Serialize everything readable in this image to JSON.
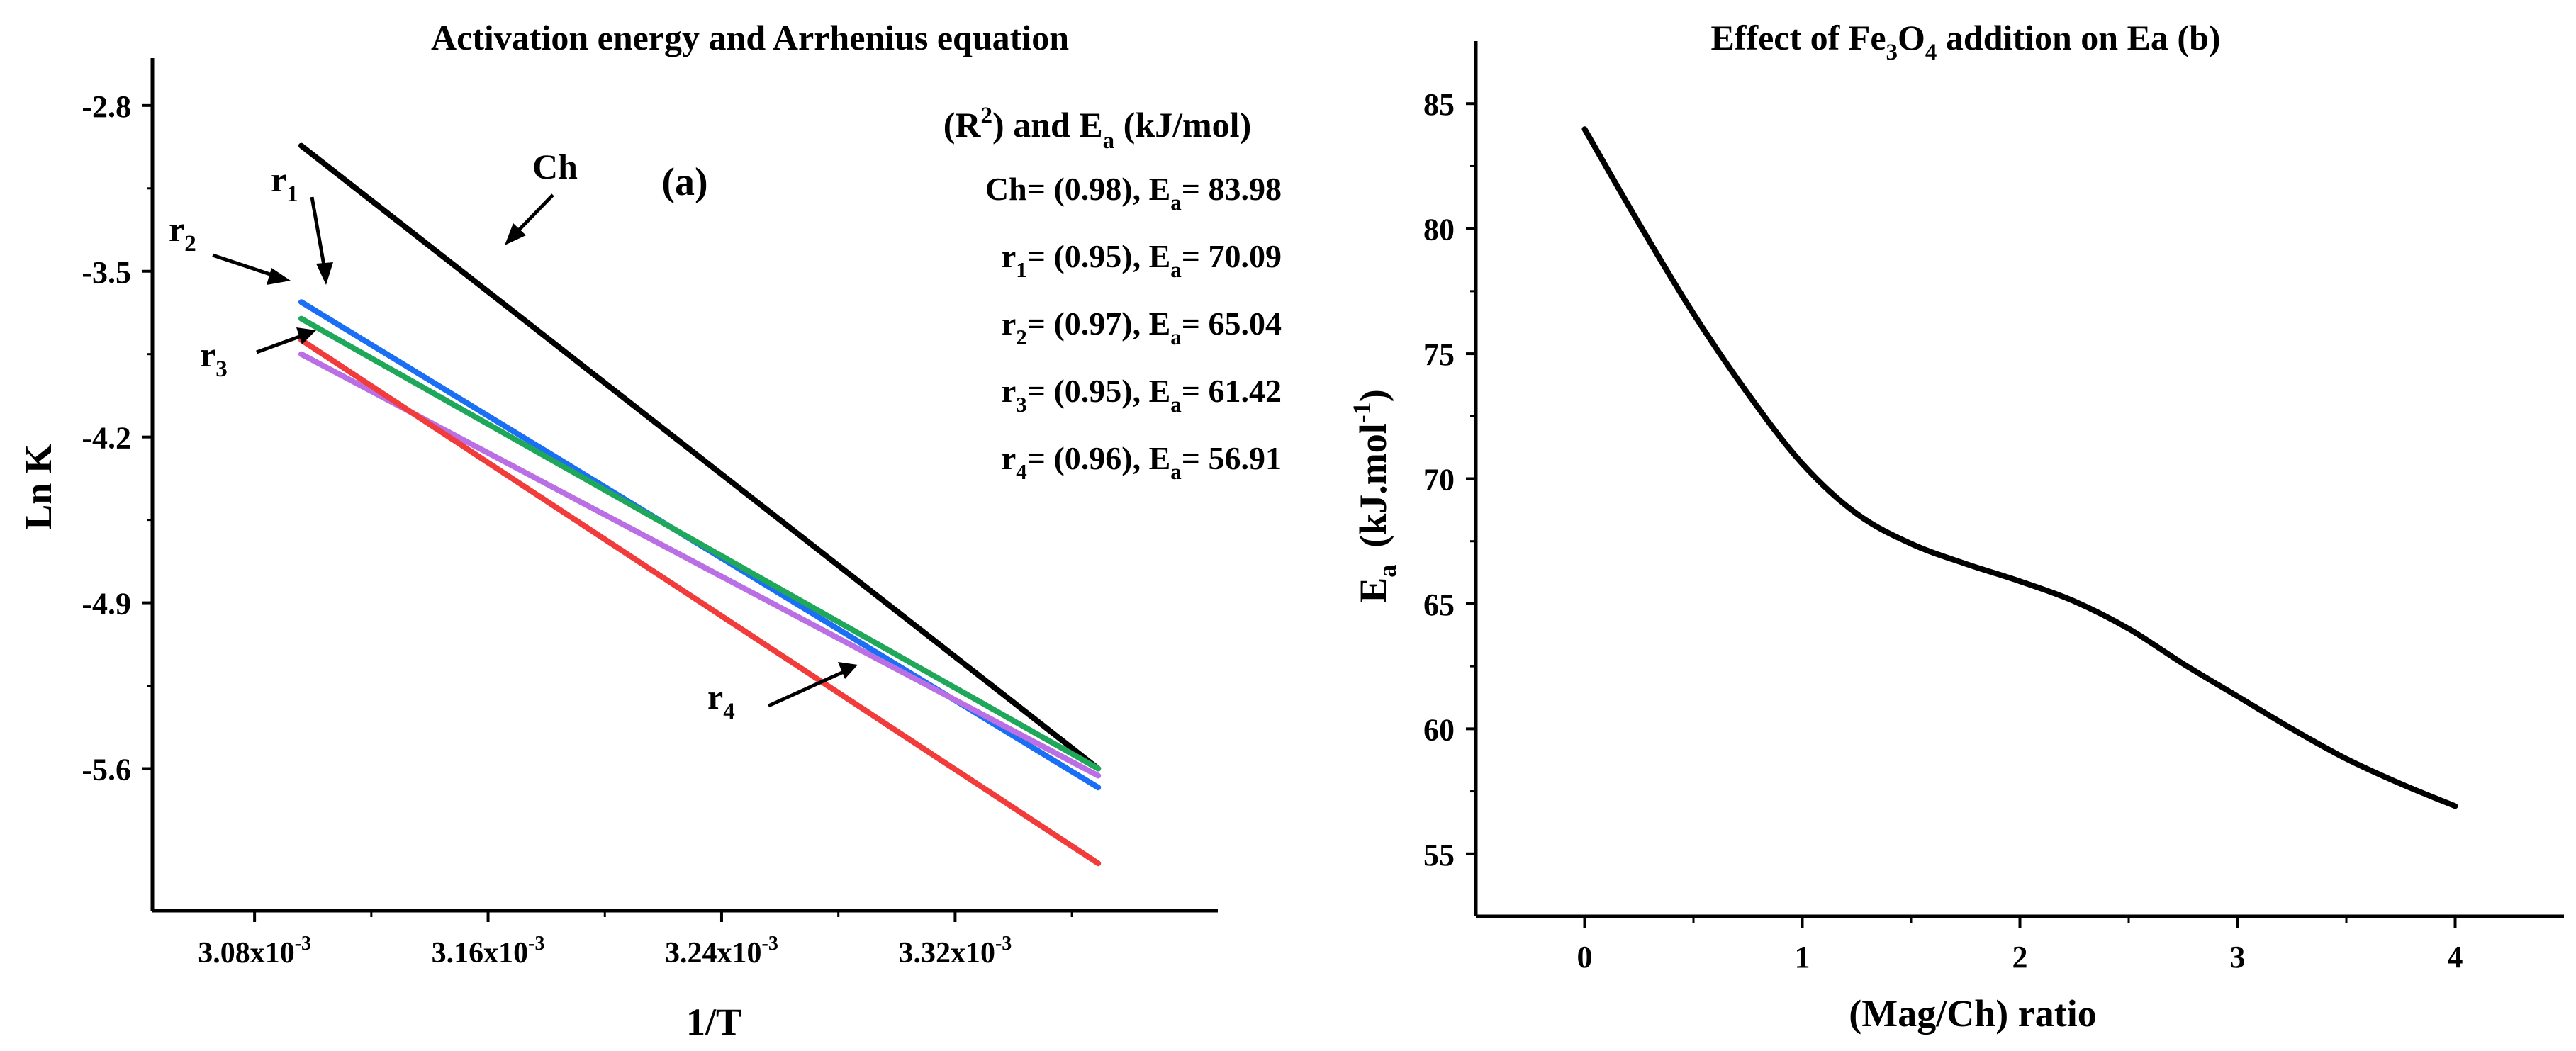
{
  "chart_data": [
    {
      "type": "line",
      "panel": "(a)",
      "title": "Activation energy and Arrhenius equation",
      "xlabel": "1/T",
      "ylabel": "Ln K",
      "xlim": [
        3.045,
        3.41
      ],
      "ylim": [
        -6.2,
        -2.6
      ],
      "xticks": [
        3.08,
        3.16,
        3.24,
        3.32
      ],
      "xtick_labels": [
        "3.08x10",
        "3.16x10",
        "3.24x10",
        "3.32x10"
      ],
      "xtick_exponent": "-3",
      "yticks": [
        -2.8,
        -3.5,
        -4.2,
        -4.9,
        -5.6
      ],
      "ytick_labels": [
        "-2.8",
        "-3.5",
        "-4.2",
        "-4.9",
        "-5.6"
      ],
      "legend_title": {
        "open": "(R",
        "sup": "2",
        "mid": ") and E",
        "sub": "a",
        "close": " (kJ/mol)"
      },
      "series": [
        {
          "name": "Ch",
          "label_main": "Ch",
          "label_sub": "",
          "r2_text": "= (0.98),",
          "ea_text": "= 83.98",
          "color": "#000000",
          "x": [
            3.096,
            3.369
          ],
          "y": [
            -2.97,
            -5.6
          ]
        },
        {
          "name": "r1",
          "label_main": "r",
          "label_sub": "1",
          "r2_text": "= (0.95),",
          "ea_text": "= 70.09",
          "color": "#1a6ff5",
          "x": [
            3.096,
            3.369
          ],
          "y": [
            -3.63,
            -5.68
          ]
        },
        {
          "name": "r2",
          "label_main": "r",
          "label_sub": "2",
          "r2_text": "= (0.97),",
          "ea_text": "= 65.04",
          "color": "#1fa85a",
          "x": [
            3.096,
            3.369
          ],
          "y": [
            -3.7,
            -5.6
          ]
        },
        {
          "name": "r3",
          "label_main": "r",
          "label_sub": "3",
          "r2_text": "= (0.95),",
          "ea_text": "= 61.42",
          "color": "#bb6fe5",
          "x": [
            3.096,
            3.369
          ],
          "y": [
            -3.85,
            -5.63
          ]
        },
        {
          "name": "r4",
          "label_main": "r",
          "label_sub": "4",
          "r2_text": "= (0.96),",
          "ea_text": "= 56.91",
          "color": "#f23c3c",
          "x": [
            3.096,
            3.369
          ],
          "y": [
            -3.79,
            -6.0
          ]
        }
      ],
      "annotations": {
        "panel_label": "(a)",
        "ea_main": "E",
        "ea_sub": "a"
      }
    },
    {
      "type": "line",
      "panel": "(b)",
      "title": {
        "pre": "Effect of Fe",
        "sub1": "3",
        "mid": "O",
        "sub2": "4",
        "post": " addition on Ea  (b)"
      },
      "xlabel": "(Mag/Ch) ratio",
      "ylabel": {
        "main": "E",
        "sub": "a",
        "unit": "(kJ.mol",
        "sup": "-1",
        "close": ")"
      },
      "xlim": [
        -0.5,
        4.5
      ],
      "ylim": [
        52.5,
        87.5
      ],
      "xticks": [
        0,
        1,
        2,
        3,
        4
      ],
      "xtick_labels": [
        "0",
        "1",
        "2",
        "3",
        "4"
      ],
      "yticks": [
        55,
        60,
        65,
        70,
        75,
        80,
        85
      ],
      "ytick_labels": [
        "55",
        "60",
        "65",
        "70",
        "75",
        "80",
        "85"
      ],
      "series": [
        {
          "name": "Ea",
          "color": "#000000",
          "x": [
            0,
            0.25,
            0.5,
            0.75,
            1.0,
            1.25,
            1.5,
            1.75,
            2.0,
            2.25,
            2.5,
            2.75,
            3.0,
            3.25,
            3.5,
            3.75,
            4.0
          ],
          "y": [
            83.98,
            80.2,
            76.6,
            73.4,
            70.6,
            68.6,
            67.4,
            66.6,
            65.9,
            65.1,
            64.0,
            62.6,
            61.3,
            60.0,
            58.8,
            57.8,
            56.91
          ]
        }
      ]
    }
  ]
}
